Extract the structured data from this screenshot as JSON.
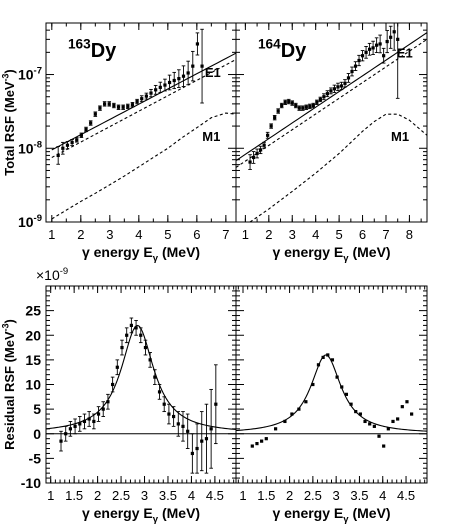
{
  "chart_data": [
    {
      "type": "scatter",
      "panel": "163Dy total RSF",
      "isotope_mass": "163",
      "isotope_symbol": "Dy",
      "ylabel": "Total RSF (MeV",
      "ylabel_exp": "-3",
      "ylabel_close": ")",
      "xlabel": "γ energy E",
      "xlabel_sub": "γ",
      "xlabel_unit": " (MeV)",
      "yscale": "log",
      "xlim": [
        0.8,
        7.35
      ],
      "ylim": [
        1e-09,
        5e-07
      ],
      "xticks": [
        "1",
        "2",
        "3",
        "4",
        "5",
        "6",
        "7"
      ],
      "yticks": [
        {
          "v": 1e-09,
          "base": "10",
          "exp": "-9"
        },
        {
          "v": 1e-08,
          "base": "10",
          "exp": "-8"
        },
        {
          "v": 1e-07,
          "base": "10",
          "exp": "-7"
        }
      ],
      "curve_labels": [
        {
          "text": "E1",
          "x": 6.55,
          "y": 9.2e-08
        },
        {
          "text": "M1",
          "x": 6.5,
          "y": 1.25e-08
        }
      ],
      "data": {
        "x": [
          1.22,
          1.38,
          1.54,
          1.7,
          1.86,
          2.02,
          2.18,
          2.34,
          2.5,
          2.66,
          2.82,
          2.98,
          3.14,
          3.3,
          3.46,
          3.62,
          3.78,
          3.94,
          4.1,
          4.26,
          4.42,
          4.58,
          4.74,
          4.9,
          5.06,
          5.22,
          5.38,
          5.54,
          5.7,
          5.86,
          6.02,
          6.18
        ],
        "y": [
          8e-09,
          1e-08,
          1.1e-08,
          1.2e-08,
          1.3e-08,
          1.5e-08,
          1.8e-08,
          2.2e-08,
          2.9e-08,
          3.5e-08,
          4e-08,
          4e-08,
          3.8e-08,
          3.6e-08,
          3.6e-08,
          3.7e-08,
          3.9e-08,
          4.3e-08,
          4.7e-08,
          5.1e-08,
          5.6e-08,
          6.2e-08,
          6.7e-08,
          7.2e-08,
          7.8e-08,
          8.3e-08,
          8.8e-08,
          9.5e-08,
          1.05e-07,
          1.3e-07,
          2.6e-07,
          1.3e-07
        ],
        "err": [
          0.12,
          0.08,
          0.05,
          0.04,
          0.03,
          0.03,
          0.03,
          0.03,
          0.03,
          0.03,
          0.03,
          0.03,
          0.03,
          0.03,
          0.03,
          0.03,
          0.03,
          0.03,
          0.04,
          0.04,
          0.05,
          0.06,
          0.07,
          0.08,
          0.1,
          0.11,
          0.12,
          0.14,
          0.16,
          0.2,
          0.15,
          0.5
        ]
      },
      "series": [
        {
          "name": "total fit",
          "style": "solid",
          "x": [
            1.0,
            7.35
          ],
          "y": [
            9.5e-09,
            1.95e-07
          ]
        },
        {
          "name": "E1",
          "style": "dashed",
          "x": [
            1.0,
            7.35
          ],
          "y": [
            7.5e-09,
            1.6e-07
          ]
        },
        {
          "name": "M1",
          "style": "dashed",
          "x": [
            1.0,
            1.5,
            2.0,
            2.5,
            3.0,
            3.5,
            4.0,
            4.5,
            5.0,
            5.5,
            6.0,
            6.5,
            7.0,
            7.35
          ],
          "y": [
            1.1e-09,
            1.45e-09,
            1.9e-09,
            2.45e-09,
            3.2e-09,
            4.2e-09,
            5.6e-09,
            7.5e-09,
            1e-08,
            1.4e-08,
            1.9e-08,
            2.6e-08,
            3e-08,
            2.9e-08
          ]
        }
      ]
    },
    {
      "type": "scatter",
      "panel": "164Dy total RSF",
      "isotope_mass": "164",
      "isotope_symbol": "Dy",
      "xlabel": "γ energy E",
      "xlabel_sub": "γ",
      "xlabel_unit": " (MeV)",
      "yscale": "log",
      "xlim": [
        0.6,
        8.75
      ],
      "ylim": [
        1e-09,
        5e-07
      ],
      "xticks": [
        "1",
        "2",
        "3",
        "4",
        "5",
        "6",
        "7",
        "8"
      ],
      "curve_labels": [
        {
          "text": "E1",
          "x": 7.8,
          "y": 1.7e-07
        },
        {
          "text": "M1",
          "x": 7.6,
          "y": 1.25e-08
        }
      ],
      "data": {
        "x": [
          1.2,
          1.35,
          1.5,
          1.65,
          1.8,
          1.95,
          2.1,
          2.25,
          2.4,
          2.55,
          2.7,
          2.85,
          3.0,
          3.15,
          3.3,
          3.45,
          3.6,
          3.75,
          3.9,
          4.05,
          4.2,
          4.35,
          4.5,
          4.65,
          4.8,
          4.95,
          5.1,
          5.25,
          5.4,
          5.55,
          5.7,
          5.85,
          6.0,
          6.15,
          6.3,
          6.45,
          6.6,
          6.75,
          6.9,
          7.05,
          7.2,
          7.35,
          7.5
        ],
        "y": [
          6.5e-09,
          7.5e-09,
          8.5e-09,
          9.5e-09,
          1.1e-08,
          1.5e-08,
          2e-08,
          2.6e-08,
          3.2e-08,
          3.8e-08,
          4.2e-08,
          4.3e-08,
          4.1e-08,
          3.8e-08,
          3.5e-08,
          3.5e-08,
          3.6e-08,
          3.7e-08,
          3.8e-08,
          4.2e-08,
          4.6e-08,
          5e-08,
          5.5e-08,
          6e-08,
          6.4e-08,
          6.8e-08,
          7e-08,
          7.6e-08,
          9e-08,
          1.1e-07,
          1.3e-07,
          1.55e-07,
          1.8e-07,
          2e-07,
          2.2e-07,
          2.3e-07,
          2.5e-07,
          2.6e-07,
          1.8e-07,
          2.8e-07,
          3.2e-07,
          3.8e-07,
          3e-07
        ],
        "err": [
          0.1,
          0.08,
          0.06,
          0.05,
          0.04,
          0.04,
          0.03,
          0.03,
          0.03,
          0.03,
          0.03,
          0.03,
          0.03,
          0.03,
          0.03,
          0.03,
          0.03,
          0.03,
          0.03,
          0.03,
          0.03,
          0.04,
          0.04,
          0.04,
          0.05,
          0.05,
          0.05,
          0.05,
          0.06,
          0.06,
          0.06,
          0.07,
          0.07,
          0.08,
          0.08,
          0.09,
          0.1,
          0.12,
          0.1,
          0.15,
          0.15,
          0.25,
          0.8
        ]
      },
      "series": [
        {
          "name": "total fit",
          "style": "solid",
          "x": [
            0.6,
            8.75
          ],
          "y": [
            6.8e-09,
            3.7e-07
          ]
        },
        {
          "name": "E1",
          "style": "dashed",
          "x": [
            0.6,
            8.75
          ],
          "y": [
            5.5e-09,
            3e-07
          ]
        },
        {
          "name": "M1",
          "style": "dashed",
          "x": [
            1.2,
            2.0,
            3.0,
            4.0,
            5.0,
            5.5,
            6.0,
            6.5,
            7.0,
            7.5,
            8.0,
            8.75
          ],
          "y": [
            1e-09,
            1.5e-09,
            2.6e-09,
            4.6e-09,
            8.5e-09,
            1.2e-08,
            1.7e-08,
            2.3e-08,
            2.9e-08,
            2.9e-08,
            2.4e-08,
            1.5e-08
          ]
        }
      ]
    },
    {
      "type": "scatter",
      "panel": "163Dy residual RSF",
      "ylabel": "Residual RSF (MeV",
      "ylabel_exp": "-3",
      "ylabel_close": ")",
      "multiplier_base": "×10",
      "multiplier_exp": "-9",
      "xlabel": "γ energy E",
      "xlabel_sub": "γ",
      "xlabel_unit": " (MeV)",
      "xlim": [
        0.9,
        4.95
      ],
      "ylim": [
        -10,
        30
      ],
      "xticks": [
        "1",
        "1.5",
        "2",
        "2.5",
        "3",
        "3.5",
        "4",
        "4.5"
      ],
      "yticks": [
        "-10",
        "-5",
        "0",
        "5",
        "10",
        "15",
        "20",
        "25"
      ],
      "data": {
        "x": [
          1.22,
          1.32,
          1.42,
          1.52,
          1.62,
          1.72,
          1.82,
          1.92,
          2.02,
          2.12,
          2.22,
          2.32,
          2.42,
          2.52,
          2.62,
          2.72,
          2.82,
          2.92,
          3.02,
          3.12,
          3.22,
          3.32,
          3.42,
          3.52,
          3.62,
          3.72,
          3.82,
          3.92,
          4.02,
          4.12,
          4.22,
          4.32,
          4.42,
          4.52
        ],
        "y": [
          -1.5,
          0,
          1,
          1.5,
          2,
          2.5,
          3,
          2.5,
          4,
          5,
          6.5,
          10,
          13.5,
          17.5,
          20,
          22,
          21.5,
          20,
          17.5,
          15,
          11.5,
          8.5,
          6,
          4,
          3.5,
          2,
          1.5,
          0.5,
          -4,
          -3,
          -1.5,
          -1,
          1,
          6
        ],
        "err": [
          2,
          1.5,
          1.5,
          1.5,
          1.5,
          1.5,
          1.5,
          1.5,
          1.5,
          1.5,
          1.5,
          1.5,
          1.5,
          1.5,
          1.5,
          1.5,
          1.5,
          1.5,
          1.5,
          1.5,
          1.5,
          1.5,
          1.5,
          2,
          2,
          2.5,
          3,
          3.5,
          4,
          5,
          6,
          7,
          8,
          8
        ]
      },
      "fit": {
        "amplitude": 22,
        "centroid": 2.85,
        "width": 0.85,
        "offset": 0
      }
    },
    {
      "type": "scatter",
      "panel": "164Dy residual RSF",
      "xlabel": "γ energy E",
      "xlabel_sub": "γ",
      "xlabel_unit": " (MeV)",
      "xlim": [
        0.85,
        4.95
      ],
      "ylim": [
        -10,
        30
      ],
      "xticks": [
        "1",
        "1.5",
        "2",
        "2.5",
        "3",
        "3.5",
        "4",
        "4.5"
      ],
      "data": {
        "x": [
          1.2,
          1.3,
          1.4,
          1.5,
          1.7,
          1.9,
          2.05,
          2.2,
          2.35,
          2.5,
          2.62,
          2.72,
          2.82,
          2.92,
          3.02,
          3.12,
          3.22,
          3.32,
          3.42,
          3.52,
          3.62,
          3.72,
          3.82,
          3.92,
          4.02,
          4.12,
          4.22,
          4.32,
          4.42,
          4.52,
          4.62
        ],
        "y": [
          -2.5,
          -2,
          -1.5,
          -1,
          1,
          2.5,
          4,
          5,
          6.5,
          10,
          14,
          15.5,
          16,
          15,
          11.5,
          9.5,
          8,
          6,
          4.5,
          4,
          2.5,
          2,
          1.5,
          -0.5,
          -2.5,
          1,
          2.5,
          3,
          5.5,
          6.5,
          4
        ]
      },
      "fit": {
        "amplitude": 16,
        "centroid": 2.78,
        "width": 0.8,
        "offset": 0
      }
    }
  ]
}
